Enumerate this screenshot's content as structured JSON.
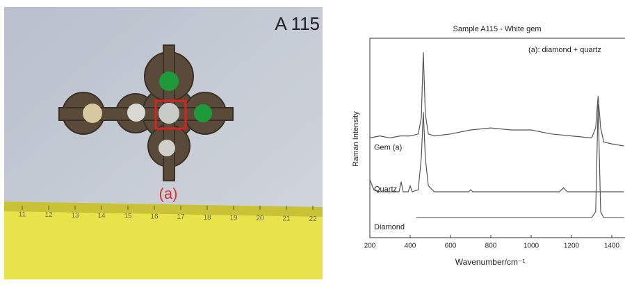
{
  "photo": {
    "label": "A 115",
    "marker": "(a)",
    "ruler_labels": [
      "11",
      "12",
      "13",
      "14",
      "15",
      "16",
      "17",
      "18",
      "19",
      "20",
      "21",
      "22"
    ]
  },
  "chart_data": {
    "type": "line",
    "title": "Sample A115 - White gem",
    "annotation": "(a): diamond + quartz",
    "xlabel": "Wavenumber/cm⁻¹",
    "ylabel": "Raman Intensity",
    "xlim": [
      200,
      1462
    ],
    "xticks": [
      200,
      400,
      600,
      800,
      1000,
      1200,
      1400
    ],
    "ylim": [
      0,
      100
    ],
    "series": [
      {
        "name": "Gem (a)",
        "color": "#555555",
        "x": [
          200,
          250,
          300,
          350,
          400,
          440,
          455,
          465,
          475,
          490,
          520,
          600,
          700,
          800,
          900,
          1000,
          1100,
          1200,
          1300,
          1320,
          1332,
          1345,
          1360,
          1400,
          1460
        ],
        "values": [
          50,
          51,
          50,
          51,
          51,
          52,
          60,
          93,
          62,
          52,
          51,
          52,
          54,
          55,
          54,
          54,
          52,
          51,
          50,
          55,
          71,
          55,
          48,
          47,
          46
        ]
      },
      {
        "name": "Quartz",
        "color": "#555555",
        "x": [
          200,
          220,
          250,
          300,
          345,
          355,
          365,
          390,
          400,
          410,
          440,
          455,
          465,
          475,
          490,
          520,
          600,
          690,
          700,
          710,
          800,
          1000,
          1140,
          1160,
          1180,
          1300,
          1460
        ],
        "values": [
          29,
          24,
          23,
          23,
          23,
          28,
          23,
          23,
          26,
          23,
          24,
          40,
          63,
          40,
          26,
          23,
          23,
          23,
          24,
          23,
          23,
          23,
          23,
          25,
          23,
          23,
          23
        ]
      },
      {
        "name": "Diamond",
        "color": "#555555",
        "x": [
          430,
          600,
          1000,
          1300,
          1320,
          1332,
          1345,
          1360,
          1460
        ],
        "values": [
          10,
          10,
          10,
          10,
          13,
          67,
          13,
          10,
          10
        ]
      }
    ]
  }
}
